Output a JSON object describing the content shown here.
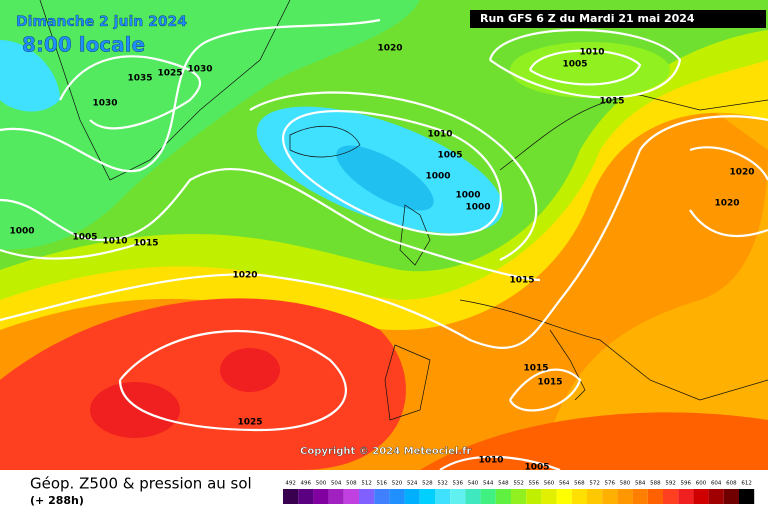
{
  "header": {
    "date": "Dimanche 2 juin 2024",
    "time": "8:00 locale",
    "run": "Run GFS 6 Z du Mardi 21 mai 2024"
  },
  "copyright": "Copyright © 2024 Meteociel.fr",
  "footer": {
    "title": "Géop. Z500 & pression au sol",
    "lead": "(+ 288h)"
  },
  "isobar_labels": [
    "1020",
    "1035",
    "1025",
    "1030",
    "1030",
    "1010",
    "1005",
    "1015",
    "1010",
    "1005",
    "1000",
    "1000",
    "1000",
    "1000",
    "1005",
    "1010",
    "1015",
    "1020",
    "1015",
    "1020",
    "1020",
    "1015",
    "1015",
    "1025",
    "1010",
    "1005"
  ],
  "scale": {
    "values": [
      492,
      496,
      500,
      504,
      508,
      512,
      516,
      520,
      524,
      528,
      532,
      536,
      540,
      544,
      548,
      552,
      556,
      560,
      564,
      568,
      572,
      576,
      580,
      584,
      588,
      592,
      596,
      600,
      604,
      608,
      612
    ],
    "colors": [
      "#3a0050",
      "#5a0080",
      "#8000a0",
      "#a020c0",
      "#c040e0",
      "#8060ff",
      "#4080ff",
      "#2090ff",
      "#00b0ff",
      "#00d0ff",
      "#40e0ff",
      "#60f0f0",
      "#40e8c0",
      "#40f080",
      "#60f040",
      "#90f020",
      "#c0f000",
      "#e0f000",
      "#ffff00",
      "#ffe000",
      "#ffc800",
      "#ffb000",
      "#ff9800",
      "#ff8000",
      "#ff6000",
      "#ff4020",
      "#f02020",
      "#d00000",
      "#a00000",
      "#700000",
      "#000000"
    ]
  }
}
